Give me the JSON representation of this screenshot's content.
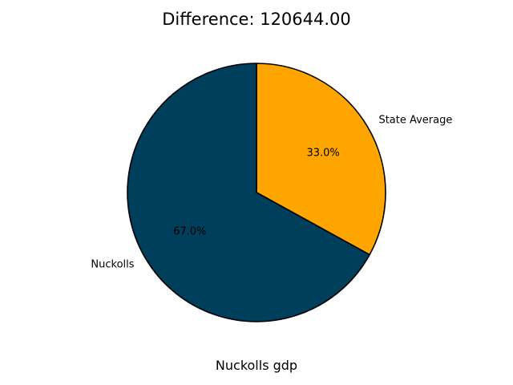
{
  "chart_data": {
    "type": "pie",
    "title": "Difference: 120644.00",
    "xlabel": "Nuckolls gdp",
    "slices": [
      {
        "label": "State Average",
        "value": 33.0,
        "pct_label": "33.0%",
        "color": "#FFA500"
      },
      {
        "label": "Nuckolls",
        "value": 67.0,
        "pct_label": "67.0%",
        "color": "#003F5C"
      }
    ],
    "start_angle_deg": 90,
    "direction": "clockwise",
    "edge_color": "#000000"
  }
}
